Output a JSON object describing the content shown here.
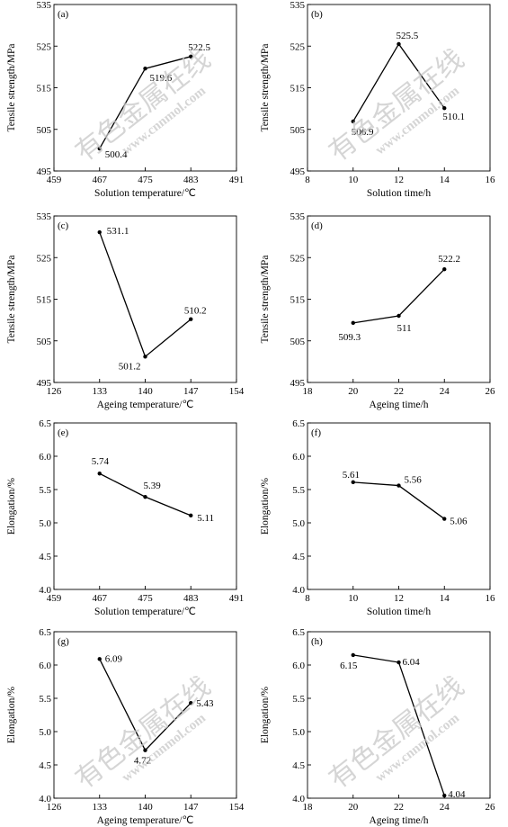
{
  "chart_data": [
    {
      "type": "line",
      "panel": "(a)",
      "xlabel": "Solution temperature/℃",
      "ylabel": "Tensile strength/MPa",
      "xlim": [
        459,
        491
      ],
      "ylim": [
        495,
        535
      ],
      "xticks": [
        459,
        467,
        475,
        483,
        491
      ],
      "yticks": [
        495,
        505,
        515,
        525,
        535
      ],
      "x": [
        467,
        475,
        483
      ],
      "y": [
        500.4,
        519.6,
        522.5
      ],
      "labels": [
        "500.4",
        "519.6",
        "522.5"
      ]
    },
    {
      "type": "line",
      "panel": "(b)",
      "xlabel": "Solution time/h",
      "ylabel": "Tensile strength/MPa",
      "xlim": [
        8,
        16
      ],
      "ylim": [
        495,
        535
      ],
      "xticks": [
        8,
        10,
        12,
        14,
        16
      ],
      "yticks": [
        495,
        505,
        515,
        525,
        535
      ],
      "x": [
        10,
        12,
        14
      ],
      "y": [
        506.9,
        525.5,
        510.1
      ],
      "labels": [
        "506.9",
        "525.5",
        "510.1"
      ]
    },
    {
      "type": "line",
      "panel": "(c)",
      "xlabel": "Ageing temperature/℃",
      "ylabel": "Tensile strength/MPa",
      "xlim": [
        126,
        154
      ],
      "ylim": [
        495,
        535
      ],
      "xticks": [
        126,
        133,
        140,
        147,
        154
      ],
      "yticks": [
        495,
        505,
        515,
        525,
        535
      ],
      "x": [
        133,
        140,
        147
      ],
      "y": [
        531.1,
        501.2,
        510.2
      ],
      "labels": [
        "531.1",
        "501.2",
        "510.2"
      ]
    },
    {
      "type": "line",
      "panel": "(d)",
      "xlabel": "Ageing time/h",
      "ylabel": "Tensile strength/MPa",
      "xlim": [
        18,
        26
      ],
      "ylim": [
        495,
        535
      ],
      "xticks": [
        18,
        20,
        22,
        24,
        26
      ],
      "yticks": [
        495,
        505,
        515,
        525,
        535
      ],
      "x": [
        20,
        22,
        24
      ],
      "y": [
        509.3,
        511,
        522.2
      ],
      "labels": [
        "509.3",
        "511",
        "522.2"
      ]
    },
    {
      "type": "line",
      "panel": "(e)",
      "xlabel": "Solution temperature/℃",
      "ylabel": "Elongation/%",
      "xlim": [
        459,
        491
      ],
      "ylim": [
        4.0,
        6.5
      ],
      "xticks": [
        459,
        467,
        475,
        483,
        491
      ],
      "yticks": [
        "4.0",
        "4.5",
        "5.0",
        "5.5",
        "6.0",
        "6.5"
      ],
      "x": [
        467,
        475,
        483
      ],
      "y": [
        5.74,
        5.39,
        5.11
      ],
      "labels": [
        "5.74",
        "5.39",
        "5.11"
      ]
    },
    {
      "type": "line",
      "panel": "(f)",
      "xlabel": "Solution time/h",
      "ylabel": "Elongation/%",
      "xlim": [
        8,
        16
      ],
      "ylim": [
        4.0,
        6.5
      ],
      "xticks": [
        8,
        10,
        12,
        14,
        16
      ],
      "yticks": [
        "4.0",
        "4.5",
        "5.0",
        "5.5",
        "6.0",
        "6.5"
      ],
      "x": [
        10,
        12,
        14
      ],
      "y": [
        5.61,
        5.56,
        5.06
      ],
      "labels": [
        "5.61",
        "5.56",
        "5.06"
      ]
    },
    {
      "type": "line",
      "panel": "(g)",
      "xlabel": "Ageing temperature/℃",
      "ylabel": "Elongation/%",
      "xlim": [
        126,
        154
      ],
      "ylim": [
        4.0,
        6.5
      ],
      "xticks": [
        126,
        133,
        140,
        147,
        154
      ],
      "yticks": [
        "4.0",
        "4.5",
        "5.0",
        "5.5",
        "6.0",
        "6.5"
      ],
      "x": [
        133,
        140,
        147
      ],
      "y": [
        6.09,
        4.72,
        5.43
      ],
      "labels": [
        "6.09",
        "4.72",
        "5.43"
      ]
    },
    {
      "type": "line",
      "panel": "(h)",
      "xlabel": "Ageing time/h",
      "ylabel": "Elongation/%",
      "xlim": [
        18,
        26
      ],
      "ylim": [
        4.0,
        6.5
      ],
      "xticks": [
        18,
        20,
        22,
        24,
        26
      ],
      "yticks": [
        "4.0",
        "4.5",
        "5.0",
        "5.5",
        "6.0",
        "6.5"
      ],
      "x": [
        20,
        22,
        24
      ],
      "y": [
        6.15,
        6.04,
        4.04
      ],
      "labels": [
        "6.15",
        "6.04",
        "4.04"
      ]
    }
  ],
  "watermark": {
    "line1": "有色金属在线",
    "line2": "www.cnnmol.com",
    "color": "#c8c8c8"
  }
}
